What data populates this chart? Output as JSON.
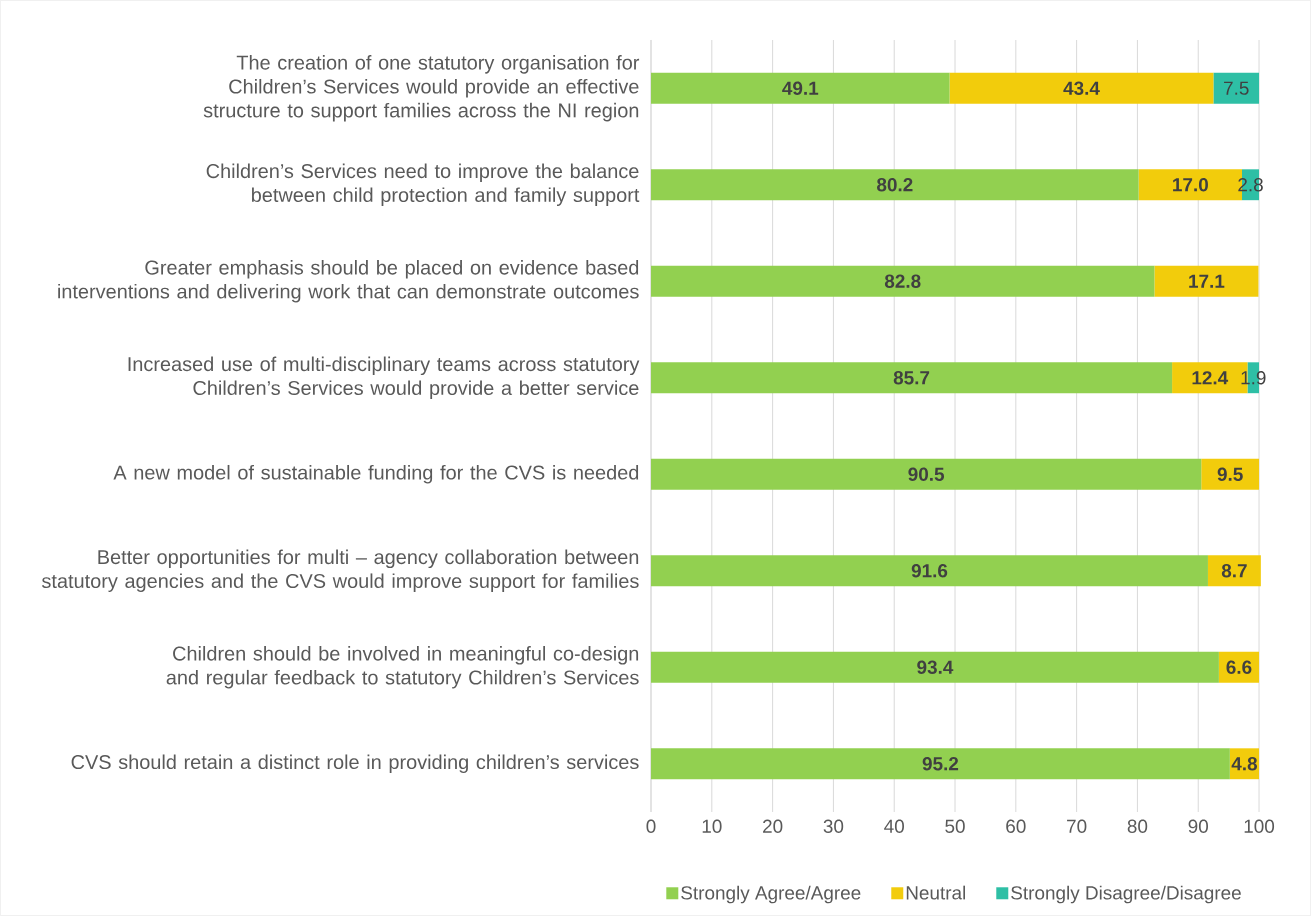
{
  "chart_data": {
    "type": "bar",
    "orientation": "horizontal",
    "stacked": true,
    "categories": [
      "The creation of one statutory organisation for Children’s Services would provide an effective structure to support families across the NI region",
      "Children’s Services need to improve the balance between child protection and family support",
      "Greater emphasis should be placed on evidence based interventions and delivering work that can demonstrate outcomes",
      "Increased use of multi-disciplinary teams across statutory Children’s Services would provide a better service",
      "A new model of sustainable funding for the CVS is needed",
      "Better opportunities for multi – agency collaboration between statutory agencies and the CVS would improve support for families",
      "Children should be involved in meaningful co-design and regular feedback to statutory Children’s Services",
      "CVS should retain a distinct role in providing children’s services"
    ],
    "series": [
      {
        "name": "Strongly Agree/Agree",
        "color": "#92d050",
        "values": [
          49.1,
          80.2,
          82.8,
          85.7,
          90.5,
          91.6,
          93.4,
          95.2
        ],
        "value_labels": [
          "49.1",
          "80.2",
          "82.8",
          "85.7",
          "90.5",
          "91.6",
          "93.4",
          "95.2"
        ]
      },
      {
        "name": "Neutral",
        "color": "#f2cc0c",
        "values": [
          43.4,
          17.0,
          17.1,
          12.4,
          9.5,
          8.7,
          6.6,
          4.8
        ],
        "value_labels": [
          "43.4",
          "17.0",
          "17.1",
          "12.4",
          "9.5",
          "8.7",
          "6.6",
          "4.8"
        ]
      },
      {
        "name": "Strongly Disagree/Disagree",
        "color": "#2ebfa5",
        "values": [
          7.5,
          2.8,
          null,
          1.9,
          null,
          null,
          null,
          null
        ],
        "value_labels": [
          "7.5",
          "2.8",
          null,
          "1.9",
          null,
          null,
          null,
          null
        ]
      }
    ],
    "xlim": [
      0,
      100
    ],
    "xticks": [
      0,
      10,
      20,
      30,
      40,
      50,
      60,
      70,
      80,
      90,
      100
    ],
    "grid": "x",
    "legend": "bottom"
  }
}
